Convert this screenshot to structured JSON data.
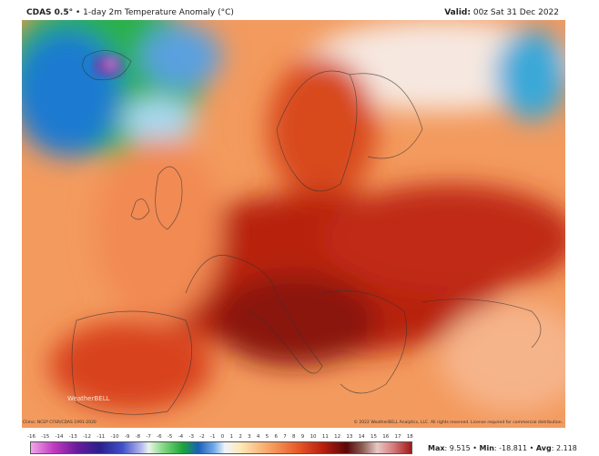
{
  "header": {
    "model": "CDAS 0.5°",
    "separator": "•",
    "product": "1-day 2m Temperature Anomaly (°C)",
    "valid_label": "Valid:",
    "valid_value": "00z Sat 31 Dec 2022"
  },
  "footer": {
    "climo_credit": "Climo: NCEP CFSR/CDAS 1991-2020",
    "copyright": "© 2022 WeatherBELL Analytics, LLC. All rights reserved. License required for commercial distribution.",
    "watermark": "WeatherBELL"
  },
  "colorbar": {
    "labels": [
      "-16",
      "-15",
      "-14",
      "-13",
      "-12",
      "-11",
      "-10",
      "-9",
      "-8",
      "-7",
      "-6",
      "-5",
      "-4",
      "-3",
      "-2",
      "-1",
      "0",
      "1",
      "2",
      "3",
      "4",
      "5",
      "6",
      "7",
      "8",
      "9",
      "10",
      "11",
      "12",
      "13",
      "14",
      "15",
      "16",
      "17",
      "18"
    ]
  },
  "stats": {
    "max_label": "Max",
    "max_value": "9.515",
    "min_label": "Min",
    "min_value": "-18.811",
    "avg_label": "Avg",
    "avg_value": "2.118",
    "sep": "•"
  }
}
